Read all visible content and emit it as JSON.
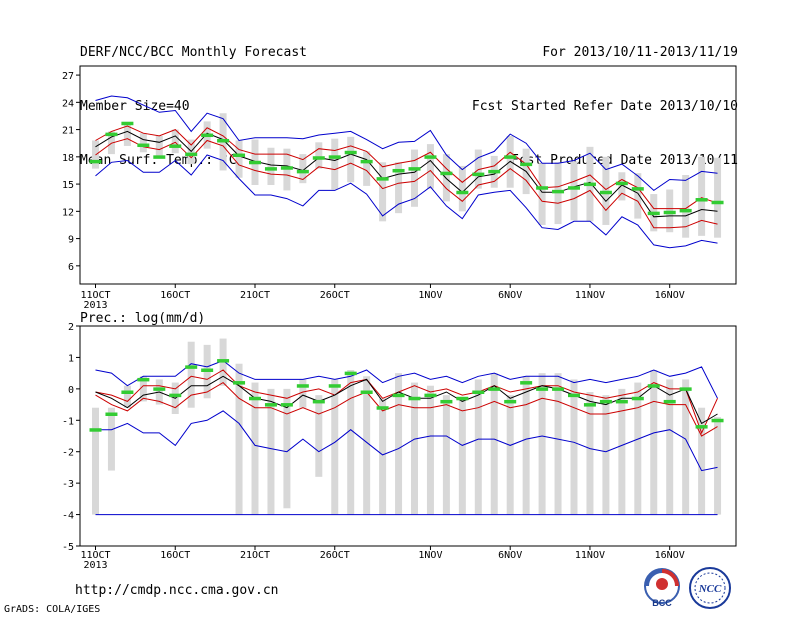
{
  "header": {
    "title": "DERF/NCC/BCC Monthly Forecast",
    "member_size": "Member Size=40",
    "temp_label": "Mean Surf. Temp.: °C",
    "period": "For 2013/10/11-2013/11/19",
    "fcst_started": "Fcst Started Refer Date 2013/10/10",
    "fcst_produced": "Fcst Produced Date 2013/10/11"
  },
  "precip_label": "Prec.: log(mm/d)",
  "footer": {
    "url": "http://cmdp.ncc.cma.gov.cn",
    "credit": "GrADS: COLA/IGES"
  },
  "logos": {
    "left": "BCC",
    "right": "NCC"
  },
  "colors": {
    "ensemble_mean": "#000000",
    "spread": "#cc0000",
    "extreme": "#0000cc",
    "observed": "#33cc33",
    "member_box": "#d8d8d8"
  },
  "chart_data": [
    {
      "type": "line",
      "title": "Mean Surf. Temp.: °C",
      "x": [
        "11OCT",
        "12OCT",
        "13OCT",
        "14OCT",
        "15OCT",
        "16OCT",
        "17OCT",
        "18OCT",
        "19OCT",
        "20OCT",
        "21OCT",
        "22OCT",
        "23OCT",
        "24OCT",
        "25OCT",
        "26OCT",
        "27OCT",
        "28OCT",
        "29OCT",
        "30OCT",
        "31OCT",
        "1NOV",
        "2NOV",
        "3NOV",
        "4NOV",
        "5NOV",
        "6NOV",
        "7NOV",
        "8NOV",
        "9NOV",
        "10NOV",
        "11NOV",
        "12NOV",
        "13NOV",
        "14NOV",
        "15NOV",
        "16NOV",
        "17NOV",
        "18NOV",
        "19NOV"
      ],
      "x_tick_labels": [
        "11OCT",
        "16OCT",
        "21OCT",
        "26OCT",
        "1NOV",
        "6NOV",
        "11NOV",
        "16NOV"
      ],
      "x_tick_sub": "2013",
      "ylim": [
        4,
        28
      ],
      "y_ticks": [
        6,
        9,
        12,
        15,
        18,
        21,
        24,
        27
      ],
      "series": [
        {
          "name": "max",
          "values": [
            24.2,
            24.7,
            24.5,
            23.7,
            22.9,
            23.1,
            20.8,
            22.8,
            22.2,
            19.8,
            20.1,
            20.1,
            20.1,
            20.0,
            20.4,
            20.6,
            20.8,
            19.9,
            18.9,
            19.6,
            19.7,
            20.9,
            18.2,
            16.6,
            17.9,
            18.6,
            20.5,
            19.5,
            17.3,
            17.3,
            17.6,
            18.4,
            16.6,
            17.2,
            15.9,
            14.3,
            15.5,
            15.4,
            16.4,
            16.2
          ]
        },
        {
          "name": "upper",
          "values": [
            19.8,
            20.8,
            21.4,
            20.6,
            20.3,
            21.0,
            19.3,
            21.2,
            20.3,
            18.8,
            18.3,
            18.3,
            18.3,
            17.7,
            18.9,
            18.7,
            19.2,
            18.6,
            16.9,
            17.3,
            17.6,
            18.5,
            16.7,
            15.2,
            16.6,
            17.0,
            18.5,
            17.2,
            14.6,
            14.7,
            15.3,
            16.0,
            14.4,
            15.5,
            14.6,
            12.3,
            12.3,
            12.3,
            13.5,
            12.9
          ]
        },
        {
          "name": "mean",
          "values": [
            19.1,
            20.2,
            20.8,
            19.9,
            19.6,
            20.3,
            18.6,
            20.6,
            19.9,
            18.1,
            17.5,
            17.1,
            17.0,
            16.5,
            17.9,
            17.6,
            18.3,
            17.7,
            15.6,
            16.1,
            16.3,
            17.6,
            15.6,
            14.1,
            15.8,
            16.1,
            17.5,
            16.4,
            14.1,
            14.1,
            14.7,
            15.2,
            13.1,
            14.9,
            14.0,
            11.4,
            11.5,
            11.5,
            12.2,
            12.0
          ]
        },
        {
          "name": "lower",
          "values": [
            18.2,
            19.5,
            20.0,
            19.1,
            18.8,
            19.6,
            17.9,
            19.8,
            19.2,
            17.1,
            16.5,
            16.1,
            16.0,
            15.5,
            16.9,
            16.6,
            17.3,
            16.5,
            14.5,
            15.1,
            15.3,
            16.5,
            14.5,
            13.1,
            14.9,
            15.3,
            16.7,
            15.4,
            13.1,
            12.9,
            13.4,
            14.3,
            12.1,
            14.0,
            13.1,
            10.2,
            10.2,
            10.3,
            11.0,
            10.6
          ]
        },
        {
          "name": "min",
          "values": [
            15.9,
            17.4,
            17.6,
            16.3,
            16.3,
            17.6,
            16.0,
            18.2,
            17.6,
            15.6,
            13.8,
            13.8,
            13.4,
            12.6,
            14.3,
            14.3,
            15.1,
            13.9,
            11.5,
            12.8,
            13.4,
            14.7,
            12.6,
            11.2,
            13.8,
            14.1,
            14.3,
            12.4,
            10.2,
            10.0,
            10.9,
            10.9,
            9.4,
            11.4,
            10.5,
            8.3,
            8.0,
            8.2,
            8.8,
            8.5
          ]
        },
        {
          "name": "observed",
          "values": [
            17.5,
            20.5,
            21.7,
            19.3,
            18.0,
            19.2,
            18.3,
            20.4,
            19.8,
            18.2,
            17.4,
            16.7,
            16.8,
            16.4,
            17.9,
            18.0,
            18.5,
            17.5,
            15.6,
            16.5,
            16.7,
            18.0,
            16.2,
            14.1,
            16.1,
            16.4,
            18.0,
            17.2,
            14.6,
            14.2,
            14.6,
            15.0,
            14.1,
            15.1,
            14.5,
            11.8,
            11.9,
            12.1,
            13.3,
            13.0
          ]
        }
      ],
      "box_ranges": [
        [
          16.7,
          19.8
        ],
        [
          18.3,
          20.8
        ],
        [
          19.2,
          21.7
        ],
        [
          18.5,
          20.6
        ],
        [
          17.9,
          20.3
        ],
        [
          18.4,
          21.0
        ],
        [
          17.2,
          19.9
        ],
        [
          18.9,
          21.9
        ],
        [
          16.5,
          22.8
        ],
        [
          15.7,
          19.8
        ],
        [
          14.9,
          19.9
        ],
        [
          14.9,
          19.0
        ],
        [
          14.3,
          18.9
        ],
        [
          15.1,
          18.3
        ],
        [
          16.7,
          19.6
        ],
        [
          14.4,
          20.0
        ],
        [
          15.2,
          20.2
        ],
        [
          14.8,
          18.6
        ],
        [
          10.9,
          17.4
        ],
        [
          11.8,
          17.4
        ],
        [
          12.5,
          18.8
        ],
        [
          14.5,
          19.4
        ],
        [
          13.1,
          18.3
        ],
        [
          12.0,
          17.0
        ],
        [
          14.5,
          18.8
        ],
        [
          14.6,
          18.1
        ],
        [
          14.6,
          20.3
        ],
        [
          13.9,
          18.9
        ],
        [
          10.5,
          17.3
        ],
        [
          10.6,
          17.4
        ],
        [
          11.0,
          17.5
        ],
        [
          10.9,
          19.1
        ],
        [
          10.5,
          18.0
        ],
        [
          13.2,
          16.3
        ],
        [
          11.2,
          16.2
        ],
        [
          9.8,
          13.9
        ],
        [
          9.7,
          14.4
        ],
        [
          9.1,
          16.0
        ],
        [
          9.3,
          18.0
        ],
        [
          9.1,
          17.9
        ]
      ]
    },
    {
      "type": "line",
      "title": "Prec.: log(mm/d)",
      "x": [
        "11OCT",
        "12OCT",
        "13OCT",
        "14OCT",
        "15OCT",
        "16OCT",
        "17OCT",
        "18OCT",
        "19OCT",
        "20OCT",
        "21OCT",
        "22OCT",
        "23OCT",
        "24OCT",
        "25OCT",
        "26OCT",
        "27OCT",
        "28OCT",
        "29OCT",
        "30OCT",
        "31OCT",
        "1NOV",
        "2NOV",
        "3NOV",
        "4NOV",
        "5NOV",
        "6NOV",
        "7NOV",
        "8NOV",
        "9NOV",
        "10NOV",
        "11NOV",
        "12NOV",
        "13NOV",
        "14NOV",
        "15NOV",
        "16NOV",
        "17NOV",
        "18NOV",
        "19NOV"
      ],
      "x_tick_labels": [
        "11OCT",
        "16OCT",
        "21OCT",
        "26OCT",
        "1NOV",
        "6NOV",
        "11NOV",
        "16NOV"
      ],
      "x_tick_sub": "2013",
      "ylim": [
        -5,
        2
      ],
      "y_ticks": [
        -5,
        -4,
        -3,
        -2,
        -1,
        0,
        1,
        2
      ],
      "series": [
        {
          "name": "max",
          "values": [
            0.6,
            0.5,
            0.1,
            0.4,
            0.4,
            0.4,
            0.8,
            0.7,
            0.9,
            0.5,
            0.3,
            0.3,
            0.3,
            0.3,
            0.4,
            0.3,
            0.4,
            0.6,
            0.2,
            0.4,
            0.5,
            0.3,
            0.4,
            0.2,
            0.4,
            0.5,
            0.3,
            0.4,
            0.4,
            0.4,
            0.2,
            0.3,
            0.2,
            0.3,
            0.4,
            0.6,
            0.4,
            0.5,
            0.7,
            -0.3
          ]
        },
        {
          "name": "upper",
          "values": [
            -0.1,
            -0.2,
            -0.4,
            0.1,
            0.1,
            0.0,
            0.4,
            0.3,
            0.6,
            0.1,
            -0.1,
            -0.2,
            -0.3,
            -0.1,
            0.0,
            -0.2,
            0.2,
            0.3,
            -0.3,
            -0.1,
            0.1,
            -0.1,
            0.0,
            -0.2,
            -0.1,
            0.1,
            -0.1,
            0.0,
            0.1,
            0.1,
            -0.1,
            -0.2,
            -0.3,
            -0.2,
            -0.1,
            0.2,
            0.0,
            0.0,
            -1.4,
            -0.3
          ]
        },
        {
          "name": "mean",
          "values": [
            -0.1,
            -0.3,
            -0.6,
            -0.2,
            -0.1,
            -0.3,
            0.1,
            0.1,
            0.4,
            0.1,
            -0.3,
            -0.4,
            -0.6,
            -0.2,
            -0.4,
            -0.2,
            0.1,
            0.3,
            -0.4,
            -0.1,
            -0.3,
            -0.3,
            -0.1,
            -0.4,
            -0.2,
            0.1,
            -0.3,
            -0.1,
            0.1,
            0.0,
            -0.2,
            -0.4,
            -0.5,
            -0.3,
            -0.3,
            0.1,
            -0.2,
            0.0,
            -1.1,
            -0.8
          ]
        },
        {
          "name": "lower",
          "values": [
            -0.2,
            -0.5,
            -0.7,
            -0.3,
            -0.4,
            -0.6,
            -0.2,
            -0.1,
            0.2,
            -0.3,
            -0.6,
            -0.6,
            -0.8,
            -0.6,
            -0.8,
            -0.6,
            -0.3,
            -0.1,
            -0.7,
            -0.5,
            -0.6,
            -0.6,
            -0.5,
            -0.7,
            -0.6,
            -0.4,
            -0.6,
            -0.5,
            -0.3,
            -0.4,
            -0.6,
            -0.8,
            -0.8,
            -0.7,
            -0.6,
            -0.4,
            -0.5,
            -0.5,
            -1.5,
            -1.2
          ]
        },
        {
          "name": "min",
          "values": [
            -1.3,
            -1.3,
            -1.1,
            -1.4,
            -1.4,
            -1.8,
            -1.1,
            -1.0,
            -0.7,
            -1.1,
            -1.8,
            -1.9,
            -2.0,
            -1.6,
            -2.0,
            -1.7,
            -1.3,
            -1.7,
            -2.1,
            -1.9,
            -1.6,
            -1.5,
            -1.5,
            -1.8,
            -1.6,
            -1.6,
            -1.8,
            -1.6,
            -1.5,
            -1.6,
            -1.7,
            -1.9,
            -2.0,
            -1.8,
            -1.6,
            -1.4,
            -1.3,
            -1.6,
            -2.6,
            -2.5
          ]
        },
        {
          "name": "observed",
          "values": [
            -1.3,
            -0.8,
            -0.1,
            0.3,
            0.0,
            -0.2,
            0.7,
            0.6,
            0.9,
            0.2,
            -0.3,
            -0.5,
            -0.5,
            0.1,
            -0.4,
            0.1,
            0.5,
            -0.1,
            -0.6,
            -0.2,
            -0.3,
            -0.2,
            -0.4,
            -0.3,
            -0.1,
            0.0,
            -0.4,
            0.2,
            0.0,
            0.0,
            -0.2,
            -0.5,
            -0.4,
            -0.4,
            -0.3,
            0.1,
            -0.4,
            0.0,
            -1.2,
            -1.0
          ]
        }
      ],
      "min_floor": -4,
      "box_ranges": [
        [
          -4,
          -0.6
        ],
        [
          -2.6,
          -0.6
        ],
        [
          -0.6,
          0.1
        ],
        [
          -0.4,
          0.4
        ],
        [
          -0.5,
          0.3
        ],
        [
          -0.8,
          0.2
        ],
        [
          -0.6,
          1.5
        ],
        [
          -0.3,
          1.4
        ],
        [
          0.1,
          1.6
        ],
        [
          -4,
          0.8
        ],
        [
          -4,
          0.2
        ],
        [
          -4,
          0.0
        ],
        [
          -3.8,
          0.0
        ],
        [
          -0.6,
          0.3
        ],
        [
          -2.8,
          -0.2
        ],
        [
          -4,
          0.3
        ],
        [
          -4,
          0.6
        ],
        [
          -4,
          0.4
        ],
        [
          -4,
          -0.3
        ],
        [
          -4,
          0.5
        ],
        [
          -4,
          0.2
        ],
        [
          -4,
          0.1
        ],
        [
          -4,
          -0.2
        ],
        [
          -4,
          -0.3
        ],
        [
          -4,
          0.3
        ],
        [
          -4,
          0.5
        ],
        [
          -4,
          -0.2
        ],
        [
          -4,
          0.4
        ],
        [
          -4,
          0.5
        ],
        [
          -4,
          0.5
        ],
        [
          -4,
          0.3
        ],
        [
          -4,
          -0.1
        ],
        [
          -4,
          -0.2
        ],
        [
          -4,
          0.0
        ],
        [
          -4,
          0.2
        ],
        [
          -4,
          0.6
        ],
        [
          -4,
          0.3
        ],
        [
          -4,
          0.3
        ],
        [
          -4,
          -0.6
        ],
        [
          -4,
          -0.9
        ]
      ]
    }
  ]
}
